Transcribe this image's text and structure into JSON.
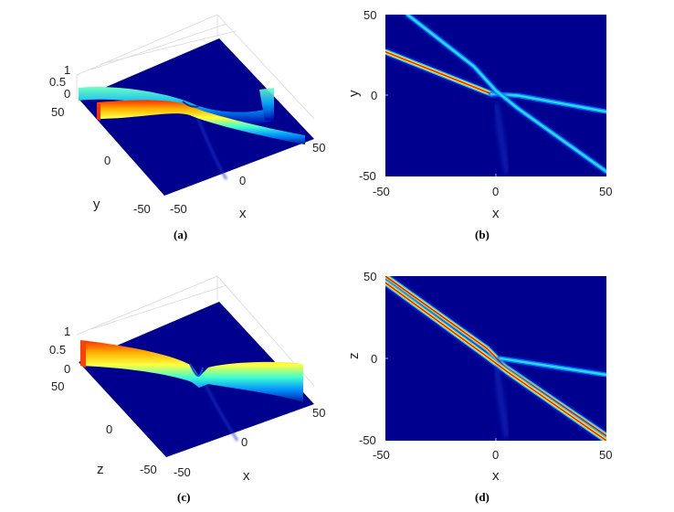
{
  "panels": [
    {
      "id": "a",
      "caption": "(a)",
      "type": "surface-3d",
      "zticks": [
        "1",
        "0.5",
        "0"
      ],
      "yticks": [
        "50",
        "0",
        "-50"
      ],
      "xticks": [
        "50",
        "0",
        "-50"
      ],
      "ylabel": "y",
      "xlabel": "x"
    },
    {
      "id": "b",
      "caption": "(b)",
      "type": "heatmap",
      "xticks": [
        "-50",
        "0",
        "50"
      ],
      "yticks": [
        "50",
        "0",
        "-50"
      ],
      "xlabel": "x",
      "ylabel": "y"
    },
    {
      "id": "c",
      "caption": "(c)",
      "type": "surface-3d",
      "zticks": [
        "1",
        "0.5",
        "0"
      ],
      "yticks": [
        "50",
        "0",
        "-50"
      ],
      "xticks": [
        "50",
        "0",
        "-50"
      ],
      "ylabel": "z",
      "xlabel": "x"
    },
    {
      "id": "d",
      "caption": "(d)",
      "type": "heatmap",
      "xticks": [
        "-50",
        "0",
        "50"
      ],
      "yticks": [
        "50",
        "0",
        "-50"
      ],
      "xlabel": "x",
      "ylabel": "z"
    }
  ],
  "colors": {
    "background": "#00008f",
    "colormap": "jet"
  },
  "chart_data": [
    {
      "type": "heatmap",
      "xlim": [
        -50,
        50
      ],
      "ylim": [
        -50,
        50
      ],
      "xlabel": "x",
      "ylabel": "y",
      "ridges": [
        {
          "points": [
            [
              -50,
              27
            ],
            [
              -2,
              1
            ]
          ],
          "peak": "high"
        },
        {
          "points": [
            [
              -2,
              1
            ],
            [
              10,
              0
            ],
            [
              50,
              -10
            ]
          ],
          "peak": "low"
        },
        {
          "points": [
            [
              -40,
              50
            ],
            [
              -10,
              18
            ],
            [
              0,
              3
            ],
            [
              10,
              -8
            ],
            [
              50,
              -47
            ]
          ],
          "peak": "low"
        }
      ]
    },
    {
      "type": "heatmap",
      "xlim": [
        -50,
        50
      ],
      "ylim": [
        -50,
        50
      ],
      "xlabel": "x",
      "ylabel": "z",
      "ridges": [
        {
          "points": [
            [
              -50,
              50
            ],
            [
              -4,
              6
            ],
            [
              4,
              -5
            ],
            [
              50,
              -47
            ]
          ],
          "peak": "high"
        },
        {
          "points": [
            [
              -50,
              46
            ],
            [
              -5,
              2
            ],
            [
              5,
              -8
            ],
            [
              50,
              -50
            ]
          ],
          "peak": "high"
        },
        {
          "points": [
            [
              2,
              0
            ],
            [
              50,
              -10
            ]
          ],
          "peak": "low"
        }
      ]
    }
  ]
}
